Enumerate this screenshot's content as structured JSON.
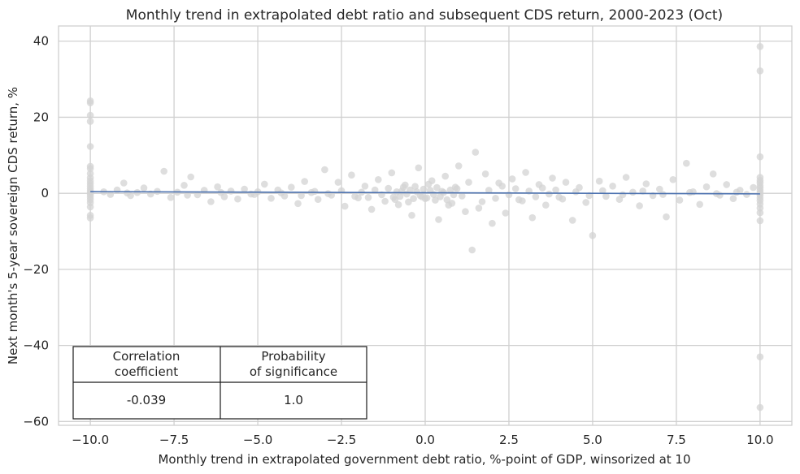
{
  "chart_data": {
    "type": "scatter",
    "title": "Monthly trend in extrapolated debt ratio and subsequent CDS return, 2000-2023 (Oct)",
    "xlabel": "Monthly trend in extrapolated government debt ratio, %-point of GDP, winsorized at 10",
    "ylabel": "Next month's 5-year sovereign CDS return, %",
    "xlim": [
      -10.95,
      10.95
    ],
    "ylim": [
      -61,
      44
    ],
    "x_ticks": [
      -10.0,
      -7.5,
      -5.0,
      -2.5,
      0.0,
      2.5,
      5.0,
      7.5,
      10.0
    ],
    "x_tick_labels": [
      "−10.0",
      "−7.5",
      "−5.0",
      "−2.5",
      "0.0",
      "2.5",
      "5.0",
      "7.5",
      "10.0"
    ],
    "y_ticks": [
      -60,
      -40,
      -20,
      0,
      20,
      40
    ],
    "y_tick_labels": [
      "−60",
      "−40",
      "−20",
      "0",
      "20",
      "40"
    ],
    "grid": true,
    "point_color": "#d3d3d3",
    "regression_color": "#4c72b0",
    "regression_line": {
      "x": [
        -10.0,
        10.0
      ],
      "y": [
        0.45,
        -0.15
      ]
    },
    "points": [
      [
        -10,
        24.3
      ],
      [
        -10,
        23.8
      ],
      [
        -10,
        20.5
      ],
      [
        -10,
        18.9
      ],
      [
        -10,
        12.3
      ],
      [
        -10,
        7.1
      ],
      [
        -10,
        6.5
      ],
      [
        -10,
        5.2
      ],
      [
        -10,
        4.1
      ],
      [
        -10,
        3.3
      ],
      [
        -10,
        2.6
      ],
      [
        -10,
        1.9
      ],
      [
        -10,
        1.2
      ],
      [
        -10,
        0.6
      ],
      [
        -10,
        0.1
      ],
      [
        -10,
        -0.4
      ],
      [
        -10,
        -1.0
      ],
      [
        -10,
        -1.7
      ],
      [
        -10,
        -2.5
      ],
      [
        -10,
        -3.6
      ],
      [
        -10,
        -5.8
      ],
      [
        -10,
        -6.5
      ],
      [
        10,
        38.6
      ],
      [
        10,
        32.2
      ],
      [
        10,
        9.6
      ],
      [
        10,
        4.2
      ],
      [
        10,
        3.4
      ],
      [
        10,
        2.8
      ],
      [
        10,
        2.0
      ],
      [
        10,
        1.4
      ],
      [
        10,
        0.7
      ],
      [
        10,
        0.1
      ],
      [
        10,
        -0.5
      ],
      [
        10,
        -1.2
      ],
      [
        10,
        -1.9
      ],
      [
        10,
        -2.8
      ],
      [
        10,
        -3.9
      ],
      [
        10,
        -5.1
      ],
      [
        10,
        -7.2
      ],
      [
        10,
        -43.0
      ],
      [
        10,
        -56.3
      ],
      [
        -9.6,
        0.4
      ],
      [
        -9.4,
        -0.3
      ],
      [
        -9.2,
        0.9
      ],
      [
        -9.0,
        2.7
      ],
      [
        -8.8,
        -0.6
      ],
      [
        -8.6,
        0.2
      ],
      [
        -8.4,
        1.4
      ],
      [
        -8.2,
        -0.2
      ],
      [
        -8.0,
        0.5
      ],
      [
        -7.8,
        5.8
      ],
      [
        -7.6,
        -1.1
      ],
      [
        -7.4,
        0.3
      ],
      [
        -7.2,
        2.1
      ],
      [
        -7.0,
        4.3
      ],
      [
        -6.8,
        -0.4
      ],
      [
        -6.6,
        0.8
      ],
      [
        -6.4,
        -2.2
      ],
      [
        -6.2,
        1.7
      ],
      [
        -6.0,
        -0.9
      ],
      [
        -5.8,
        0.6
      ],
      [
        -5.6,
        -1.5
      ],
      [
        -5.4,
        1.1
      ],
      [
        -5.2,
        -0.2
      ],
      [
        -5.0,
        0.4
      ],
      [
        -4.8,
        2.4
      ],
      [
        -4.6,
        -1.3
      ],
      [
        -4.4,
        0.9
      ],
      [
        -4.2,
        -0.7
      ],
      [
        -4.0,
        1.6
      ],
      [
        -3.8,
        -2.7
      ],
      [
        -3.6,
        3.1
      ],
      [
        -3.4,
        0.2
      ],
      [
        -3.2,
        -1.6
      ],
      [
        -3.0,
        6.2
      ],
      [
        -2.8,
        -0.5
      ],
      [
        -2.6,
        2.9
      ],
      [
        -2.4,
        -3.4
      ],
      [
        -2.2,
        4.8
      ],
      [
        -2.0,
        -1.2
      ],
      [
        -1.8,
        1.9
      ],
      [
        -1.6,
        -4.2
      ],
      [
        -1.4,
        3.6
      ],
      [
        -1.2,
        -2.1
      ],
      [
        -1.0,
        5.4
      ],
      [
        -0.8,
        -3.0
      ],
      [
        -0.6,
        2.2
      ],
      [
        -0.4,
        -5.8
      ],
      [
        -0.2,
        6.7
      ],
      [
        0.0,
        -1.4
      ],
      [
        0.2,
        3.3
      ],
      [
        0.4,
        -6.9
      ],
      [
        0.6,
        4.5
      ],
      [
        0.8,
        -2.6
      ],
      [
        1.0,
        7.2
      ],
      [
        1.2,
        -4.8
      ],
      [
        1.4,
        -14.9
      ],
      [
        1.5,
        10.8
      ],
      [
        1.6,
        -3.9
      ],
      [
        1.8,
        5.1
      ],
      [
        2.0,
        -7.9
      ],
      [
        2.2,
        2.7
      ],
      [
        2.4,
        -5.2
      ],
      [
        2.6,
        3.8
      ],
      [
        2.8,
        -1.7
      ],
      [
        3.0,
        5.5
      ],
      [
        3.2,
        -6.4
      ],
      [
        3.4,
        2.3
      ],
      [
        3.6,
        -3.1
      ],
      [
        3.8,
        4.0
      ],
      [
        4.0,
        -1.0
      ],
      [
        4.2,
        2.9
      ],
      [
        4.4,
        -7.1
      ],
      [
        4.6,
        1.5
      ],
      [
        4.8,
        -2.4
      ],
      [
        5.0,
        -11.1
      ],
      [
        5.2,
        3.2
      ],
      [
        5.4,
        -0.8
      ],
      [
        5.6,
        1.9
      ],
      [
        5.8,
        -1.6
      ],
      [
        6.0,
        4.2
      ],
      [
        6.2,
        0.3
      ],
      [
        6.4,
        -3.3
      ],
      [
        6.6,
        2.5
      ],
      [
        6.8,
        -0.6
      ],
      [
        7.0,
        1.1
      ],
      [
        7.2,
        -6.2
      ],
      [
        7.4,
        3.6
      ],
      [
        7.6,
        -1.8
      ],
      [
        7.8,
        7.9
      ],
      [
        8.0,
        0.4
      ],
      [
        8.2,
        -2.9
      ],
      [
        8.4,
        1.7
      ],
      [
        8.6,
        5.1
      ],
      [
        8.8,
        -0.5
      ],
      [
        9.0,
        2.3
      ],
      [
        9.2,
        -1.4
      ],
      [
        9.4,
        0.8
      ],
      [
        9.6,
        -0.3
      ],
      [
        9.8,
        1.5
      ],
      [
        -8.9,
        0.1
      ],
      [
        -7.1,
        -0.5
      ],
      [
        -6.1,
        0.2
      ],
      [
        -5.1,
        -0.3
      ],
      [
        -4.3,
        0.1
      ],
      [
        -3.7,
        -0.6
      ],
      [
        -3.3,
        0.5
      ],
      [
        -2.9,
        -0.1
      ],
      [
        -2.5,
        0.7
      ],
      [
        -2.1,
        -0.8
      ],
      [
        -1.9,
        0.3
      ],
      [
        -1.7,
        -1.1
      ],
      [
        -1.5,
        0.9
      ],
      [
        -1.3,
        -0.4
      ],
      [
        -1.1,
        1.3
      ],
      [
        -0.9,
        -1.6
      ],
      [
        -0.7,
        0.6
      ],
      [
        -0.5,
        -2.3
      ],
      [
        -0.3,
        1.8
      ],
      [
        -0.1,
        -0.9
      ],
      [
        0.1,
        2.4
      ],
      [
        0.3,
        -1.8
      ],
      [
        0.5,
        0.5
      ],
      [
        0.7,
        -3.1
      ],
      [
        0.9,
        1.6
      ],
      [
        1.1,
        -0.7
      ],
      [
        1.3,
        2.9
      ],
      [
        1.7,
        -2.2
      ],
      [
        1.9,
        0.8
      ],
      [
        2.1,
        -1.3
      ],
      [
        2.3,
        1.9
      ],
      [
        2.5,
        -0.4
      ],
      [
        2.7,
        1.2
      ],
      [
        2.9,
        -2.0
      ],
      [
        3.1,
        0.6
      ],
      [
        3.3,
        -0.9
      ],
      [
        3.5,
        1.4
      ],
      [
        3.7,
        -0.2
      ],
      [
        3.9,
        0.9
      ],
      [
        4.1,
        -1.5
      ],
      [
        4.5,
        0.4
      ],
      [
        4.9,
        -0.6
      ],
      [
        5.3,
        0.7
      ],
      [
        5.9,
        -0.4
      ],
      [
        6.5,
        0.6
      ],
      [
        7.1,
        -0.3
      ],
      [
        7.9,
        0.2
      ],
      [
        8.7,
        -0.1
      ],
      [
        9.3,
        0.3
      ],
      [
        -0.25,
        0.4
      ],
      [
        -0.15,
        -0.6
      ],
      [
        -0.05,
        1.1
      ],
      [
        0.05,
        -1.2
      ],
      [
        0.15,
        0.8
      ],
      [
        0.25,
        -0.3
      ],
      [
        -0.35,
        -1.4
      ],
      [
        0.35,
        1.5
      ],
      [
        -0.45,
        0.9
      ],
      [
        0.45,
        -0.9
      ],
      [
        -0.55,
        -0.2
      ],
      [
        0.55,
        0.2
      ],
      [
        0.65,
        -1.7
      ],
      [
        -0.65,
        1.6
      ],
      [
        0.75,
        0.9
      ],
      [
        -0.75,
        -0.8
      ],
      [
        0.85,
        -0.4
      ],
      [
        -0.85,
        0.4
      ],
      [
        0.95,
        1.2
      ],
      [
        -0.95,
        -1.0
      ]
    ],
    "table": {
      "headers": [
        "Correlation\ncoefficient",
        "Probability\nof significance"
      ],
      "header_lines": [
        [
          "Correlation",
          "coefficient"
        ],
        [
          "Probability",
          "of significance"
        ]
      ],
      "values": [
        "-0.039",
        "1.0"
      ]
    }
  }
}
